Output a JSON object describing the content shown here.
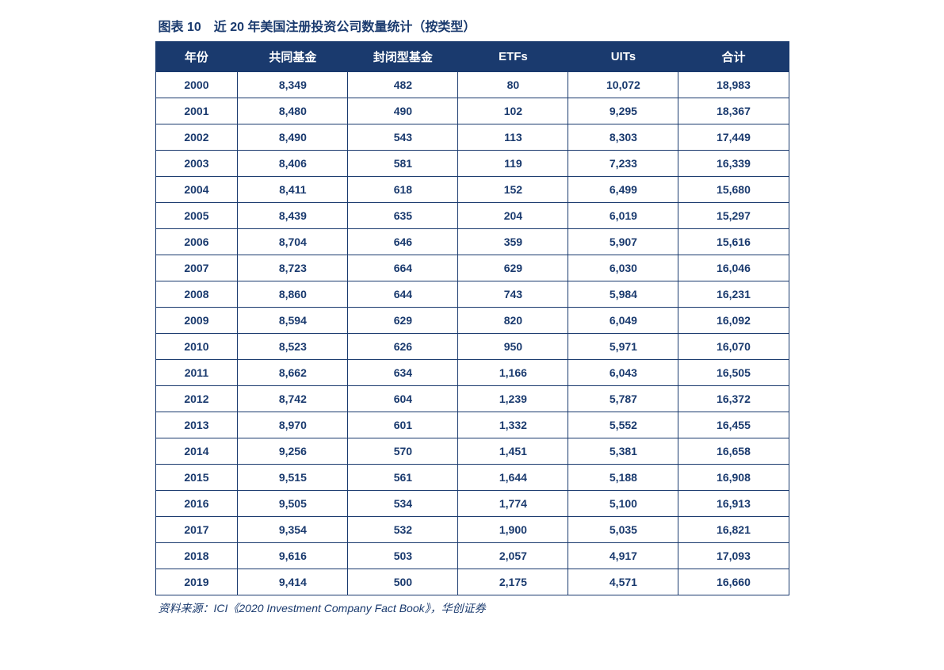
{
  "title": "图表 10　近 20 年美国注册投资公司数量统计（按类型）",
  "source": "资料来源：ICI《2020 Investment Company Fact Book》，华创证券",
  "table": {
    "type": "table",
    "header_bg_color": "#1a3a6e",
    "header_text_color": "#ffffff",
    "cell_text_color": "#1a3a6e",
    "border_color": "#1a3a6e",
    "background_color": "#ffffff",
    "title_fontsize": 16,
    "header_fontsize": 15,
    "cell_fontsize": 14,
    "source_fontsize": 14,
    "columns": [
      "年份",
      "共同基金",
      "封闭型基金",
      "ETFs",
      "UITs",
      "合计"
    ],
    "column_widths": [
      "13%",
      "17.4%",
      "17.4%",
      "17.4%",
      "17.4%",
      "17.4%"
    ],
    "rows": [
      [
        "2000",
        "8,349",
        "482",
        "80",
        "10,072",
        "18,983"
      ],
      [
        "2001",
        "8,480",
        "490",
        "102",
        "9,295",
        "18,367"
      ],
      [
        "2002",
        "8,490",
        "543",
        "113",
        "8,303",
        "17,449"
      ],
      [
        "2003",
        "8,406",
        "581",
        "119",
        "7,233",
        "16,339"
      ],
      [
        "2004",
        "8,411",
        "618",
        "152",
        "6,499",
        "15,680"
      ],
      [
        "2005",
        "8,439",
        "635",
        "204",
        "6,019",
        "15,297"
      ],
      [
        "2006",
        "8,704",
        "646",
        "359",
        "5,907",
        "15,616"
      ],
      [
        "2007",
        "8,723",
        "664",
        "629",
        "6,030",
        "16,046"
      ],
      [
        "2008",
        "8,860",
        "644",
        "743",
        "5,984",
        "16,231"
      ],
      [
        "2009",
        "8,594",
        "629",
        "820",
        "6,049",
        "16,092"
      ],
      [
        "2010",
        "8,523",
        "626",
        "950",
        "5,971",
        "16,070"
      ],
      [
        "2011",
        "8,662",
        "634",
        "1,166",
        "6,043",
        "16,505"
      ],
      [
        "2012",
        "8,742",
        "604",
        "1,239",
        "5,787",
        "16,372"
      ],
      [
        "2013",
        "8,970",
        "601",
        "1,332",
        "5,552",
        "16,455"
      ],
      [
        "2014",
        "9,256",
        "570",
        "1,451",
        "5,381",
        "16,658"
      ],
      [
        "2015",
        "9,515",
        "561",
        "1,644",
        "5,188",
        "16,908"
      ],
      [
        "2016",
        "9,505",
        "534",
        "1,774",
        "5,100",
        "16,913"
      ],
      [
        "2017",
        "9,354",
        "532",
        "1,900",
        "5,035",
        "16,821"
      ],
      [
        "2018",
        "9,616",
        "503",
        "2,057",
        "4,917",
        "17,093"
      ],
      [
        "2019",
        "9,414",
        "500",
        "2,175",
        "4,571",
        "16,660"
      ]
    ]
  }
}
